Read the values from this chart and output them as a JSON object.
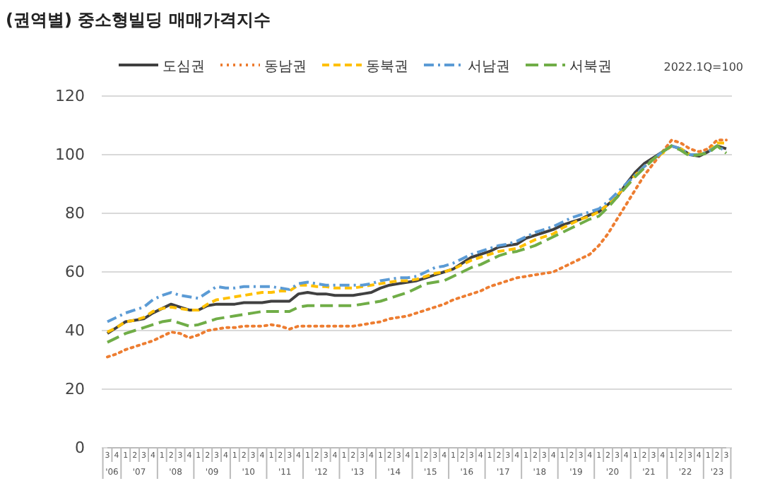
{
  "chart_data": {
    "type": "line",
    "title": "(권역별) 중소형빌딩 매매가격지수",
    "categories": [
      "3",
      "4",
      "1",
      "2",
      "3",
      "4",
      "1",
      "2",
      "3",
      "4",
      "1",
      "2",
      "3",
      "4",
      "1",
      "2",
      "3",
      "4",
      "1",
      "2",
      "3",
      "4",
      "1",
      "2",
      "3",
      "4",
      "1",
      "2",
      "3",
      "4",
      "1",
      "2",
      "3",
      "4",
      "1",
      "2",
      "3",
      "4",
      "1",
      "2",
      "3",
      "4",
      "1",
      "2",
      "3",
      "4",
      "1",
      "2",
      "3",
      "4",
      "1",
      "2",
      "3",
      "4",
      "1",
      "2",
      "3",
      "4",
      "1",
      "2",
      "3",
      "4",
      "1",
      "2",
      "3",
      "4",
      "1",
      "2",
      "3"
    ],
    "annotations": [
      "2022.1Q=100",
      "'06",
      "'07",
      "'08",
      "'09",
      "'10",
      "'11",
      "'12",
      "'13",
      "'14",
      "'15",
      "'16",
      "'17",
      "'18",
      "'19",
      "'20",
      "'21",
      "'22",
      "'23"
    ],
    "ylim": [
      0,
      120
    ],
    "yticks": [
      0,
      20,
      40,
      60,
      80,
      100,
      120
    ],
    "grid": "y",
    "legend": "top",
    "marker": "none",
    "series": [
      {
        "name": "도심권",
        "color": "#404040",
        "line_style": "solid",
        "values": [
          39,
          41,
          43,
          43.5,
          44,
          46,
          47.5,
          49,
          48,
          47,
          47,
          48.5,
          49,
          49,
          49,
          49.5,
          49.5,
          49.5,
          50,
          50,
          50,
          52.5,
          53,
          52.5,
          52.5,
          52,
          52,
          52,
          52.5,
          53,
          54.5,
          55.5,
          56,
          56.5,
          57,
          58,
          59,
          60,
          61,
          63,
          65,
          66,
          67,
          68.5,
          69,
          69.5,
          71.5,
          72.5,
          73.5,
          74.5,
          76,
          77,
          78,
          79.5,
          80.5,
          83,
          85.5,
          90,
          94,
          97,
          99,
          101,
          103,
          102,
          100,
          99.5,
          101,
          103,
          102
        ]
      },
      {
        "name": "동남권",
        "color": "#ed7d31",
        "line_style": "dotted",
        "values": [
          31,
          32,
          33.5,
          34.5,
          35.5,
          36.5,
          38,
          39.5,
          39,
          37.5,
          38.5,
          40,
          40.5,
          41,
          41,
          41.5,
          41.5,
          41.5,
          42,
          41.5,
          40.5,
          41.5,
          41.5,
          41.5,
          41.5,
          41.5,
          41.5,
          41.5,
          42,
          42.5,
          43,
          44,
          44.5,
          45,
          46,
          47,
          48,
          49,
          50.5,
          51.5,
          52.5,
          53.5,
          55,
          56,
          57,
          58,
          58.5,
          59,
          59.5,
          60,
          61.5,
          63,
          64.5,
          66,
          69,
          73,
          78,
          83,
          88,
          93,
          97,
          101,
          105,
          104,
          102,
          101,
          102,
          105,
          105
        ]
      },
      {
        "name": "동북권",
        "color": "#ffc000",
        "line_style": "dashed",
        "values": [
          39.5,
          41,
          43,
          43.5,
          44.5,
          46.5,
          47.5,
          48,
          47.5,
          47,
          47,
          49,
          50.5,
          51,
          51.5,
          52,
          52.5,
          53,
          53,
          53.5,
          53.5,
          55.5,
          55.5,
          55,
          55,
          54.5,
          54.5,
          54.5,
          55,
          55.5,
          56,
          56.5,
          57,
          57,
          57.5,
          58.5,
          59.5,
          60,
          61,
          62.5,
          64,
          65,
          66,
          67,
          67.5,
          68,
          69.5,
          71,
          72,
          73,
          75,
          76.5,
          78,
          79,
          80.5,
          83,
          86,
          89.5,
          93,
          96,
          98.5,
          100.5,
          103,
          102,
          100,
          100,
          101,
          104,
          104
        ]
      },
      {
        "name": "서남권",
        "color": "#5b9bd5",
        "line_style": "dashdot",
        "values": [
          43,
          44.5,
          46,
          47,
          48,
          50.5,
          52,
          53,
          52,
          51.5,
          51,
          53,
          55,
          54.5,
          54.5,
          55,
          55,
          55,
          55,
          54.5,
          54,
          56,
          56.5,
          56,
          55.5,
          55.5,
          55.5,
          55.5,
          55.5,
          56,
          57,
          57.5,
          58,
          58,
          58.5,
          60,
          61.5,
          62,
          63,
          64.5,
          66,
          67,
          68,
          69,
          69.5,
          70.5,
          72,
          73.5,
          74.5,
          75.5,
          77,
          78.5,
          79.5,
          80.5,
          81.5,
          84,
          87,
          90,
          93,
          96,
          98.5,
          101,
          103,
          102,
          100,
          100,
          101,
          103,
          101
        ]
      },
      {
        "name": "서북권",
        "color": "#70ad47",
        "line_style": "longdash",
        "values": [
          36,
          37.5,
          39,
          40,
          41,
          42,
          43,
          43.5,
          42.5,
          41.5,
          42,
          43,
          44,
          44.5,
          45,
          45.5,
          46,
          46.5,
          46.5,
          46.5,
          46.5,
          48,
          48.5,
          48.5,
          48.5,
          48.5,
          48.5,
          48.5,
          49,
          49.5,
          50,
          51,
          52,
          53,
          54.5,
          56,
          56.5,
          57,
          58.5,
          60,
          61.5,
          62.5,
          64,
          65.5,
          66.5,
          67,
          68,
          69,
          70.5,
          72,
          73.5,
          75,
          76.5,
          78,
          79,
          82,
          85.5,
          89,
          92.5,
          95.5,
          98.5,
          101,
          103,
          101.5,
          99.5,
          100,
          100.5,
          103,
          100.5
        ]
      }
    ]
  }
}
